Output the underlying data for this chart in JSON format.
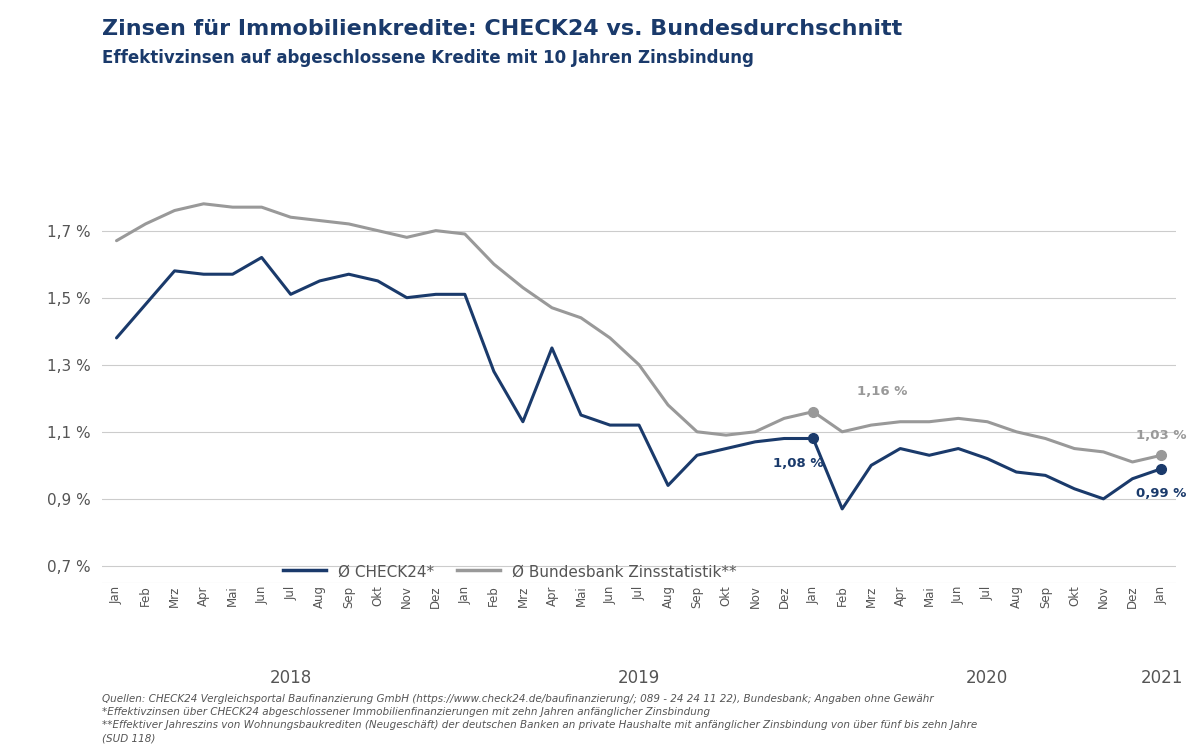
{
  "title": "Zinsen für Immobilienkredite: CHECK24 vs. Bundesdurchschnitt",
  "subtitle": "Effektivzinsen auf abgeschlossene Kredite mit 10 Jahren Zinsbindung",
  "check24_color": "#1a3a6b",
  "bundesbank_color": "#999999",
  "background_color": "#ffffff",
  "ylim": [
    0.65,
    1.92
  ],
  "yticks": [
    0.7,
    0.9,
    1.1,
    1.3,
    1.5,
    1.7
  ],
  "legend_check24": "Ø CHECK24*",
  "legend_bundesbank": "Ø Bundesbank Zinsstatistik**",
  "footnote": "Quellen: CHECK24 Vergleichsportal Baufinanzierung GmbH (https://www.check24.de/baufinanzierung/; 089 - 24 24 11 22), Bundesbank; Angaben ohne Gewähr\n*Effektivzinsen über CHECK24 abgeschlossener Immobilienfinanzierungen mit zehn Jahren anfänglicher Zinsbindung\n**Effektiver Jahreszins von Wohnungsbaukrediten (Neugeschäft) der deutschen Banken an private Haushalte mit anfänglicher Zinsbindung von über fünf bis zehn Jahre\n(SUD 118)",
  "months": [
    "Jan",
    "Feb",
    "Mrz",
    "Apr",
    "Mai",
    "Jun",
    "Jul",
    "Aug",
    "Sep",
    "Okt",
    "Nov",
    "Dez",
    "Jan",
    "Feb",
    "Mrz",
    "Apr",
    "Mai",
    "Jun",
    "Jul",
    "Aug",
    "Sep",
    "Okt",
    "Nov",
    "Dez",
    "Jan",
    "Feb",
    "Mrz",
    "Apr",
    "Mai",
    "Jun",
    "Jul",
    "Aug",
    "Sep",
    "Okt",
    "Nov",
    "Dez",
    "Jan"
  ],
  "year_labels": [
    {
      "label": "2018",
      "index": 6
    },
    {
      "label": "2019",
      "index": 18
    },
    {
      "label": "2020",
      "index": 30
    },
    {
      "label": "2021",
      "index": 36
    }
  ],
  "check24_data": [
    1.38,
    1.48,
    1.58,
    1.57,
    1.57,
    1.62,
    1.51,
    1.55,
    1.57,
    1.55,
    1.5,
    1.51,
    1.51,
    1.28,
    1.13,
    1.35,
    1.15,
    1.12,
    1.12,
    0.94,
    1.03,
    1.05,
    1.07,
    1.08,
    1.08,
    0.87,
    1.0,
    1.05,
    1.03,
    1.05,
    1.02,
    0.98,
    0.97,
    0.93,
    0.9,
    0.96,
    0.99
  ],
  "bundesbank_data": [
    1.67,
    1.72,
    1.76,
    1.78,
    1.77,
    1.77,
    1.74,
    1.73,
    1.72,
    1.7,
    1.68,
    1.7,
    1.69,
    1.6,
    1.53,
    1.47,
    1.44,
    1.38,
    1.3,
    1.18,
    1.1,
    1.09,
    1.1,
    1.14,
    1.16,
    1.1,
    1.12,
    1.13,
    1.13,
    1.14,
    1.13,
    1.1,
    1.08,
    1.05,
    1.04,
    1.01,
    1.03
  ]
}
